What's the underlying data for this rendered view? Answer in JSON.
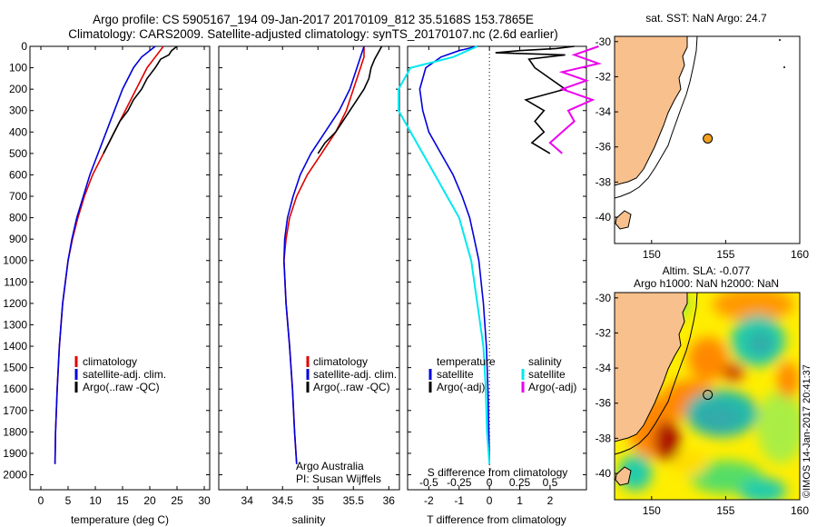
{
  "titles": {
    "line1": "Argo profile: CS 5905167_194 09-Jan-2017 20170109_812 35.5168S 153.7865E",
    "line2": "Climatology: CARS2009. Satellite-adjusted climatology: synTS_20170107.nc (2.6d earlier)"
  },
  "credit": "©IMOS 14-Jan-2017 20:41:37",
  "colors": {
    "climatology": "#e00000",
    "satellite": "#0000dd",
    "argo": "#000000",
    "sal_satellite": "#00e8f0",
    "sal_argo": "#ee00ee",
    "land": "#f8c08c",
    "marker": "#f0a020"
  },
  "chart_data": [
    {
      "type": "line",
      "id": "temperature",
      "xlabel": "temperature (deg C)",
      "xlim": [
        -2,
        31
      ],
      "xticks": [
        0,
        5,
        10,
        15,
        20,
        25,
        30
      ],
      "ylim": [
        0,
        2070
      ],
      "yticks": [
        0,
        100,
        200,
        300,
        400,
        500,
        600,
        700,
        800,
        900,
        1000,
        1100,
        1200,
        1300,
        1400,
        1500,
        1600,
        1700,
        1800,
        1900,
        2000
      ],
      "legend": [
        "climatology",
        "satellite-adj. clim.",
        "Argo(..raw -QC)"
      ],
      "series": [
        {
          "name": "climatology",
          "color_key": "climatology",
          "depth": [
            0,
            50,
            100,
            200,
            300,
            400,
            500,
            600,
            700,
            800,
            900,
            1000,
            1200,
            1400,
            1600,
            1800,
            1950
          ],
          "values": [
            22.5,
            21,
            19.5,
            17.5,
            15.5,
            13.5,
            11.5,
            9.5,
            8,
            6.8,
            5.8,
            5,
            4,
            3.4,
            3,
            2.7,
            2.6
          ]
        },
        {
          "name": "satellite-adj. clim.",
          "color_key": "satellite",
          "depth": [
            0,
            50,
            100,
            200,
            300,
            400,
            500,
            600,
            700,
            800,
            900,
            1000,
            1200,
            1400,
            1600,
            1800,
            1950
          ],
          "values": [
            21,
            18.5,
            17,
            15,
            13.5,
            12,
            10.5,
            9,
            7.8,
            6.6,
            5.7,
            5,
            4,
            3.4,
            3,
            2.7,
            2.6
          ]
        },
        {
          "name": "Argo(..raw -QC)",
          "color_key": "argo",
          "depth": [
            0,
            20,
            40,
            60,
            80,
            100,
            150,
            200,
            250,
            300,
            350,
            400,
            450,
            500
          ],
          "values": [
            25,
            24,
            23.5,
            22,
            21.5,
            21,
            19.5,
            18.5,
            17,
            16,
            14.5,
            13.5,
            12.5,
            11.5
          ]
        }
      ]
    },
    {
      "type": "line",
      "id": "salinity",
      "xlabel": "salinity",
      "xlim": [
        33.6,
        36.15
      ],
      "xticks": [
        34,
        34.5,
        35,
        35.5,
        36
      ],
      "ylim": [
        0,
        2070
      ],
      "legend": [
        "climatology",
        "satellite-adj. clim.",
        "Argo(..raw -QC)"
      ],
      "annotations": [
        "Argo Australia",
        "PI: Susan Wijffels"
      ],
      "series": [
        {
          "name": "climatology",
          "color_key": "climatology",
          "depth": [
            0,
            50,
            100,
            200,
            300,
            400,
            500,
            600,
            700,
            800,
            900,
            1000,
            1200,
            1400,
            1600,
            1800,
            1950
          ],
          "values": [
            35.65,
            35.65,
            35.6,
            35.5,
            35.4,
            35.25,
            35.05,
            34.85,
            34.7,
            34.6,
            34.55,
            34.52,
            34.55,
            34.6,
            34.64,
            34.67,
            34.7
          ]
        },
        {
          "name": "satellite-adj. clim.",
          "color_key": "satellite",
          "depth": [
            0,
            50,
            100,
            200,
            300,
            400,
            500,
            600,
            700,
            800,
            900,
            1000,
            1200,
            1400,
            1600,
            1800,
            1950
          ],
          "values": [
            35.65,
            35.6,
            35.55,
            35.45,
            35.3,
            35.1,
            34.9,
            34.75,
            34.65,
            34.57,
            34.53,
            34.52,
            34.55,
            34.6,
            34.64,
            34.67,
            34.7
          ]
        },
        {
          "name": "Argo(..raw -QC)",
          "color_key": "argo",
          "depth": [
            0,
            30,
            60,
            100,
            150,
            200,
            250,
            300,
            350,
            400,
            450,
            500
          ],
          "values": [
            35.9,
            35.85,
            35.8,
            35.75,
            35.72,
            35.65,
            35.55,
            35.45,
            35.35,
            35.25,
            35.1,
            35.0
          ]
        }
      ]
    },
    {
      "type": "line",
      "id": "difference",
      "xlabel": "T difference from climatology",
      "xlabel_top": "S difference from climatology",
      "xlim": [
        -2.7,
        3.2
      ],
      "xticks": [
        -2,
        -1,
        0,
        1,
        2
      ],
      "xticks_s": [
        -0.5,
        -0.25,
        0,
        0.25,
        0.5
      ],
      "ylim": [
        0,
        2070
      ],
      "legend_left_title": "temperature",
      "legend_right_title": "salinity",
      "legend": [
        "satellite",
        "Argo(-adj)",
        "satellite",
        "Argo(-adj)"
      ],
      "series": [
        {
          "name": "T satellite",
          "color_key": "satellite",
          "depth": [
            0,
            20,
            50,
            100,
            200,
            300,
            400,
            500,
            600,
            700,
            800,
            900,
            1000,
            1200,
            1400,
            1600,
            1800,
            1950
          ],
          "values": [
            -0.4,
            -1.0,
            -1.6,
            -2.1,
            -2.3,
            -2.2,
            -2.0,
            -1.6,
            -1.2,
            -0.9,
            -0.65,
            -0.5,
            -0.35,
            -0.2,
            -0.1,
            -0.05,
            -0.02,
            0
          ]
        },
        {
          "name": "T Argo(-adj)",
          "color_key": "argo",
          "depth": [
            0,
            10,
            20,
            30,
            40,
            60,
            100,
            150,
            200,
            250,
            300,
            350,
            400,
            450,
            500
          ],
          "values": [
            2.8,
            2.2,
            1.0,
            0.2,
            2.5,
            1.3,
            1.5,
            2.0,
            2.5,
            1.2,
            1.8,
            1.5,
            1.8,
            1.4,
            2.0
          ]
        },
        {
          "name": "S satellite",
          "color_key": "sal_satellite",
          "depth": [
            0,
            50,
            100,
            200,
            300,
            400,
            500,
            600,
            700,
            800,
            900,
            1000,
            1200,
            1400,
            1600,
            1800,
            1950
          ],
          "values": [
            -0.1,
            -0.3,
            -0.65,
            -0.75,
            -0.75,
            -0.65,
            -0.55,
            -0.45,
            -0.35,
            -0.25,
            -0.2,
            -0.15,
            -0.1,
            -0.05,
            -0.03,
            -0.02,
            0
          ]
        },
        {
          "name": "S Argo(-adj)",
          "color_key": "sal_argo",
          "depth": [
            0,
            40,
            80,
            120,
            160,
            200,
            250,
            300,
            350,
            400,
            450,
            500
          ],
          "values": [
            0.9,
            0.7,
            0.9,
            0.6,
            0.8,
            0.6,
            0.85,
            0.65,
            0.7,
            0.6,
            0.5,
            0.6
          ]
        }
      ]
    },
    {
      "type": "map",
      "id": "sst_map",
      "title": "sat. SST: NaN Argo: 24.7",
      "xlim": [
        147.5,
        160
      ],
      "xticks": [
        150,
        155,
        160
      ],
      "ylim": [
        -41.5,
        -29.7
      ],
      "yticks": [
        -30,
        -32,
        -34,
        -36,
        -38,
        -40
      ],
      "profile_location": {
        "lon": 153.79,
        "lat": -35.52
      }
    },
    {
      "type": "map",
      "id": "sla_map",
      "title_line1": "Altim. SLA: -0.077",
      "title_line2": "Argo h1000: NaN h2000: NaN",
      "xlim": [
        147.5,
        160
      ],
      "xticks": [
        150,
        155,
        160
      ],
      "ylim": [
        -41.5,
        -29.7
      ],
      "yticks": [
        -30,
        -32,
        -34,
        -36,
        -38,
        -40
      ],
      "profile_location": {
        "lon": 153.79,
        "lat": -35.52
      }
    }
  ]
}
